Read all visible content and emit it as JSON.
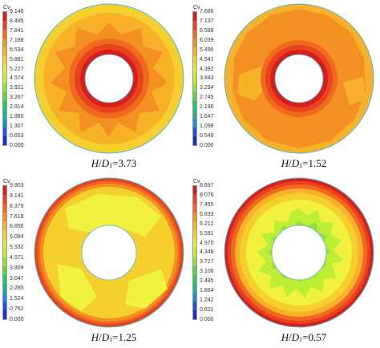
{
  "legend_title": "Cv",
  "colors": {
    "scale": [
      "#d81d1d",
      "#e8431c",
      "#f0691f",
      "#f48f22",
      "#f7b22a",
      "#f5cf2d",
      "#e4e735",
      "#bbee35",
      "#8ee23a",
      "#58d447",
      "#2ac862",
      "#1db38f",
      "#1c8fd6",
      "#1d59d2",
      "#1c2fc9"
    ],
    "ring_outline": "#4fb8c9"
  },
  "panels": [
    {
      "ticks": [
        "9.148",
        "8.495",
        "7.841",
        "7.188",
        "6.534",
        "5.881",
        "5.227",
        "4.574",
        "3.921",
        "3.267",
        "2.614",
        "1.960",
        "1.307",
        "0.653",
        "0.000"
      ],
      "caption": {
        "var": "H",
        "slash": "/",
        "d": "D",
        "sub": "1",
        "value": "=3.73"
      }
    },
    {
      "ticks": [
        "7.686",
        "7.137",
        "6.588",
        "6.039",
        "5.490",
        "4.941",
        "4.392",
        "3.843",
        "3.294",
        "2.745",
        "2.196",
        "1.647",
        "1.098",
        "0.549",
        "0.000"
      ],
      "caption": {
        "var": "H",
        "slash": "/",
        "d": "D",
        "sub": "1",
        "value": "=1.52"
      }
    },
    {
      "ticks": [
        "9.903",
        "9.141",
        "8.379",
        "7.618",
        "6.856",
        "6.094",
        "5.332",
        "4.571",
        "3.809",
        "3.047",
        "2.285",
        "1.524",
        "0.762",
        "0.000"
      ],
      "caption": {
        "var": "H",
        "slash": "/",
        "d": "D",
        "sub": "1",
        "value": "=1.25"
      }
    },
    {
      "ticks": [
        "8.697",
        "8.076",
        "7.455",
        "6.833",
        "6.212",
        "5.591",
        "4.970",
        "4.348",
        "3.727",
        "3.106",
        "2.485",
        "1.864",
        "1.242",
        "0.621",
        "0.000"
      ],
      "caption": {
        "var": "H",
        "slash": "/",
        "d": "D",
        "sub": "1",
        "value": "=0.57"
      }
    }
  ]
}
